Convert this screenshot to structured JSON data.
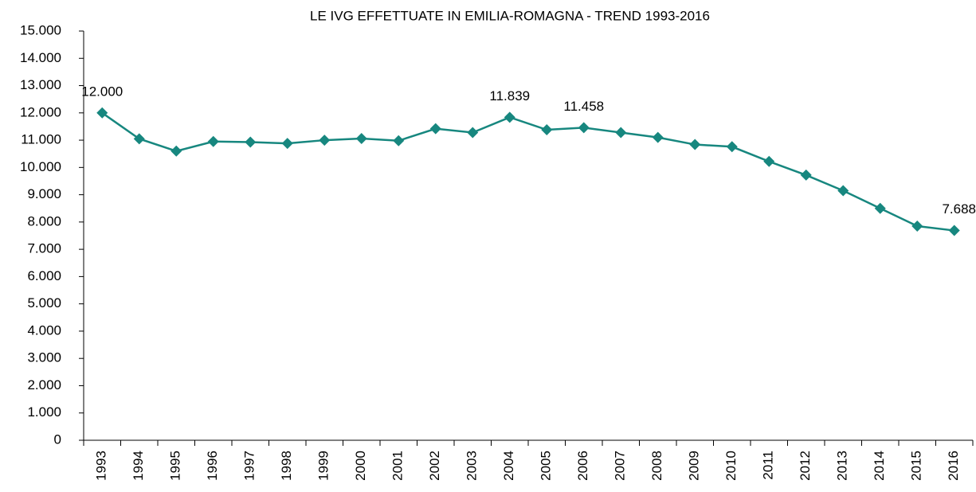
{
  "chart_data": {
    "type": "line",
    "title": "LE IVG EFFETTUATE IN EMILIA-ROMAGNA  - TREND 1993-2016",
    "categories": [
      "1993",
      "1994",
      "1995",
      "1996",
      "1997",
      "1998",
      "1999",
      "2000",
      "2001",
      "2002",
      "2003",
      "2004",
      "2005",
      "2006",
      "2007",
      "2008",
      "2009",
      "2010",
      "2011",
      "2012",
      "2013",
      "2014",
      "2015",
      "2016"
    ],
    "series": [
      {
        "name": "IVG",
        "color": "#17877f",
        "values": [
          12000,
          11050,
          10600,
          10950,
          10930,
          10880,
          11000,
          11060,
          10980,
          11420,
          11280,
          11839,
          11380,
          11458,
          11280,
          11100,
          10840,
          10760,
          10220,
          9720,
          9150,
          8500,
          7850,
          7688
        ],
        "value_labels": [
          "12.000",
          null,
          null,
          null,
          null,
          null,
          null,
          null,
          null,
          null,
          null,
          "11.839",
          null,
          "11.458",
          null,
          null,
          null,
          null,
          null,
          null,
          null,
          null,
          null,
          "7.688"
        ]
      }
    ],
    "ylim": [
      0,
      15000
    ],
    "yticks": [
      0,
      {
        "value": 1000,
        "label": "1.000"
      },
      {
        "value": 2000,
        "label": "2.000"
      },
      {
        "value": 3000,
        "label": "3.000"
      },
      {
        "value": 4000,
        "label": "4.000"
      },
      {
        "value": 5000,
        "label": "5.000"
      },
      {
        "value": 6000,
        "label": "6.000"
      },
      {
        "value": 7000,
        "label": "7.000"
      },
      {
        "value": 8000,
        "label": "8.000"
      },
      {
        "value": 9000,
        "label": "9.000"
      },
      {
        "value": 10000,
        "label": "10.000"
      },
      {
        "value": 11000,
        "label": "11.000"
      },
      {
        "value": 12000,
        "label": "12.000"
      },
      {
        "value": 13000,
        "label": "13.000"
      },
      {
        "value": 14000,
        "label": "14.000"
      },
      {
        "value": 15000,
        "label": "15.000"
      }
    ],
    "grid": false
  }
}
